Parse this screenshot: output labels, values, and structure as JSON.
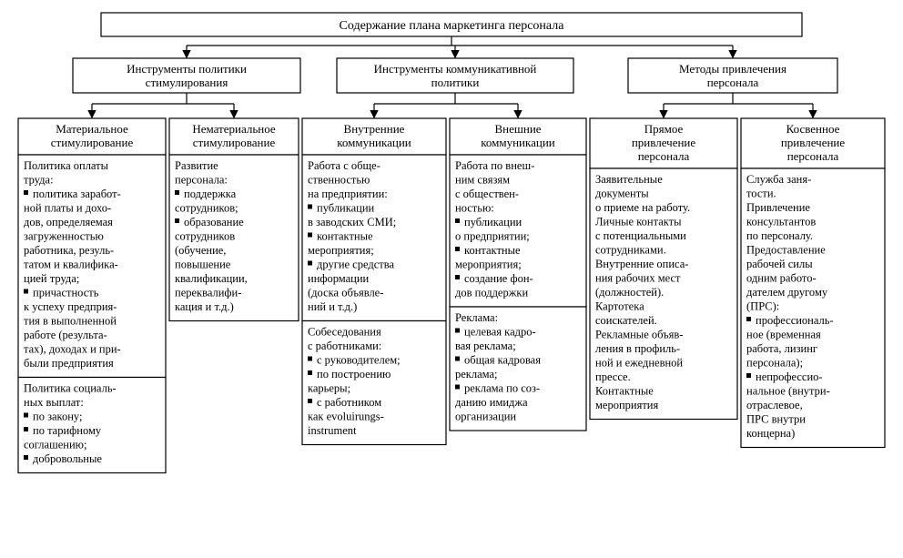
{
  "diagram": {
    "type": "tree",
    "background_color": "#ffffff",
    "stroke_color": "#000000",
    "stroke_width": 1.2,
    "font_family": "Times New Roman",
    "title_fontsize": 14,
    "header_fontsize": 13,
    "body_fontsize": 12.5,
    "root": {
      "label": "Содержание плана маркетинга персонала"
    },
    "level1": [
      {
        "id": "l1a",
        "lines": [
          "Инструменты политики",
          "стимулирования"
        ]
      },
      {
        "id": "l1b",
        "lines": [
          "Инструменты коммуникативной",
          "политики"
        ]
      },
      {
        "id": "l1c",
        "lines": [
          "Методы привлечения",
          "персонала"
        ]
      }
    ],
    "level2": [
      {
        "id": "c1",
        "parent": "l1a",
        "header": [
          "Материальное",
          "стимулирование"
        ],
        "sections": [
          {
            "intro": [
              "Политика оплаты",
              "труда:"
            ],
            "bullets": [
              [
                "политика заработ-",
                "ной платы и дохо-",
                "дов, определяемая",
                "загруженностью",
                "работника, резуль-",
                "татом и квалифика-",
                "цией труда;"
              ],
              [
                "причастность",
                "к успеху предприя-",
                "тия в выполненной",
                "работе (результа-",
                "тах), доходах и при-",
                "были предприятия"
              ]
            ]
          },
          {
            "intro": [
              "Политика социаль-",
              "ных выплат:"
            ],
            "bullets": [
              [
                "по закону;"
              ],
              [
                "по тарифному",
                "соглашению;"
              ],
              [
                "добровольные"
              ]
            ]
          }
        ]
      },
      {
        "id": "c2",
        "parent": "l1a",
        "header": [
          "Нематериальное",
          "стимулирование"
        ],
        "sections": [
          {
            "intro": [
              "Развитие",
              "персонала:"
            ],
            "bullets": [
              [
                "поддержка",
                "сотрудников;"
              ],
              [
                "образование",
                "сотрудников",
                "(обучение,",
                "повышение",
                "квалификации,",
                "переквалифи-",
                "кация и т.д.)"
              ]
            ]
          }
        ]
      },
      {
        "id": "c3",
        "parent": "l1b",
        "header": [
          "Внутренние",
          "коммуникации"
        ],
        "sections": [
          {
            "intro": [
              "Работа с обще-",
              "ственностью",
              "на предприятии:"
            ],
            "bullets": [
              [
                "публикации",
                "в заводских СМИ;"
              ],
              [
                "контактные",
                "мероприятия;"
              ],
              [
                "другие средства",
                "информации",
                "(доска объявле-",
                "ний и т.д.)"
              ]
            ]
          },
          {
            "intro": [
              "Собеседования",
              "с работниками:"
            ],
            "bullets": [
              [
                "с руководителем;"
              ],
              [
                "по построению",
                "карьеры;"
              ],
              [
                "с работником",
                "как evoluirungs-",
                "instrument"
              ]
            ]
          }
        ]
      },
      {
        "id": "c4",
        "parent": "l1b",
        "header": [
          "Внешние",
          "коммуникации"
        ],
        "sections": [
          {
            "intro": [
              "Работа по внеш-",
              "ним связям",
              "с обществен-",
              "ностью:"
            ],
            "bullets": [
              [
                "публикации",
                "о предприятии;"
              ],
              [
                "контактные",
                "мероприятия;"
              ],
              [
                "создание фон-",
                "дов поддержки"
              ]
            ]
          },
          {
            "intro": [
              "Реклама:"
            ],
            "bullets": [
              [
                "целевая кадро-",
                "вая реклама;"
              ],
              [
                "общая кадровая",
                "реклама;"
              ],
              [
                "реклама по соз-",
                "данию имиджа",
                "организации"
              ]
            ]
          }
        ]
      },
      {
        "id": "c5",
        "parent": "l1c",
        "header": [
          "Прямое",
          "привлечение",
          "персонала"
        ],
        "sections": [
          {
            "intro": [
              "Заявительные",
              "документы",
              "о приеме на работу.",
              "Личные контакты",
              "с потенциальными",
              "сотрудниками.",
              "Внутренние описа-",
              "ния рабочих мест",
              "(должностей).",
              "Картотека",
              "соискателей.",
              "Рекламные объяв-",
              "ления в профиль-",
              "ной и ежедневной",
              "прессе.",
              "Контактные",
              "мероприятия"
            ],
            "bullets": []
          }
        ]
      },
      {
        "id": "c6",
        "parent": "l1c",
        "header": [
          "Косвенное",
          "привлечение",
          "персонала"
        ],
        "sections": [
          {
            "intro": [
              "Служба заня-",
              "тости.",
              "Привлечение",
              "консультантов",
              "по персоналу.",
              "Предоставление",
              "рабочей силы",
              "одним работо-",
              "дателем другому",
              "(ПРС):"
            ],
            "bullets": [
              [
                "профессиональ-",
                "ное (временная",
                "работа, лизинг",
                "персонала);"
              ],
              [
                "непрофессио-",
                "нальное (внутри-",
                "отраслевое,",
                "ПРС внутри",
                "концерна)"
              ]
            ]
          }
        ]
      }
    ]
  }
}
